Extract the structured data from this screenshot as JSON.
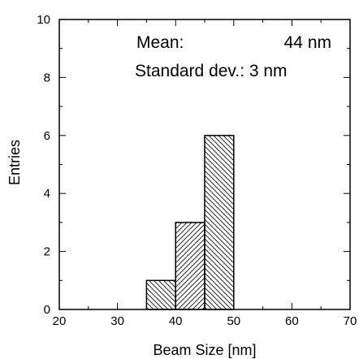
{
  "chart_data": {
    "type": "bar",
    "subtype": "histogram",
    "xlabel": "Beam Size [nm]",
    "ylabel": "Entries",
    "xlim": [
      20,
      70
    ],
    "ylim": [
      0,
      10
    ],
    "x_ticks": [
      20,
      30,
      40,
      50,
      60,
      70
    ],
    "y_ticks": [
      0,
      2,
      4,
      6,
      8,
      10
    ],
    "bins": [
      {
        "x_start": 35,
        "x_end": 40,
        "value": 1,
        "hatch": "backslash"
      },
      {
        "x_start": 40,
        "x_end": 45,
        "value": 3,
        "hatch": "slash"
      },
      {
        "x_start": 45,
        "x_end": 50,
        "value": 6,
        "hatch": "backslash"
      }
    ],
    "annotations": {
      "mean_label": "Mean:",
      "mean_value": "44 nm",
      "stddev_text": "Standard dev.: 3 nm"
    },
    "grid": false,
    "colors": {
      "bar_fill": "#ffffff",
      "bar_edge": "#000000",
      "hatch": "#000000"
    }
  }
}
